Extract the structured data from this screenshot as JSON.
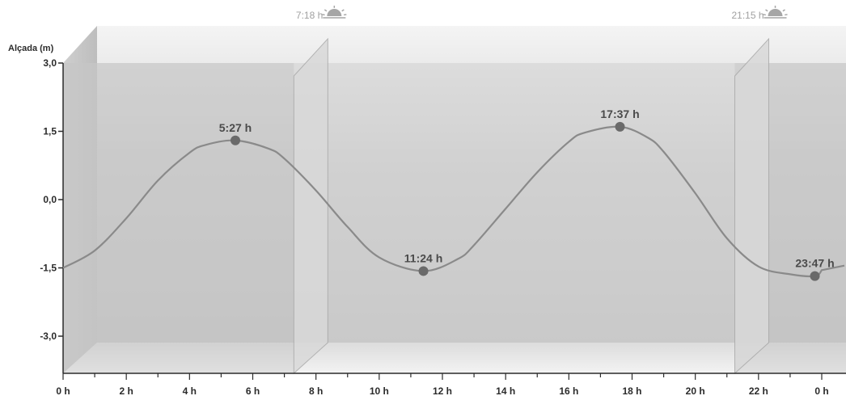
{
  "chart_data": {
    "type": "line",
    "ylabel": "Alçada  (m)",
    "xlabel": "",
    "xlim": [
      0,
      24
    ],
    "ylim": [
      -3.0,
      3.0
    ],
    "x_ticks": [
      0,
      2,
      4,
      6,
      8,
      10,
      12,
      14,
      16,
      18,
      20,
      22,
      24
    ],
    "x_tick_labels": [
      "0 h",
      "2 h",
      "4 h",
      "6 h",
      "8 h",
      "10 h",
      "12 h",
      "14 h",
      "16 h",
      "18 h",
      "20 h",
      "22 h",
      "0 h"
    ],
    "y_ticks": [
      3.0,
      1.5,
      0.0,
      -1.5,
      -3.0
    ],
    "y_tick_labels": [
      "3,0",
      "1,5",
      "0,0",
      "-1,5",
      "-3,0"
    ],
    "series": [
      {
        "x": [
          0.0,
          1.0,
          2.0,
          3.0,
          4.0,
          4.5,
          5.45,
          6.5,
          7.0,
          8.0,
          9.0,
          10.0,
          11.4,
          12.5,
          13.0,
          14.0,
          15.0,
          16.0,
          16.5,
          17.617,
          18.5,
          19.0,
          20.0,
          21.0,
          22.0,
          23.0,
          23.783,
          24.0
        ],
        "y": [
          -1.5,
          -1.12,
          -0.41,
          0.42,
          1.03,
          1.2,
          1.3,
          1.12,
          0.9,
          0.2,
          -0.6,
          -1.27,
          -1.57,
          -1.3,
          -1.0,
          -0.2,
          0.6,
          1.27,
          1.47,
          1.6,
          1.36,
          1.05,
          0.14,
          -0.85,
          -1.47,
          -1.64,
          -1.68,
          -1.55
        ]
      }
    ],
    "events": [
      {
        "label": "5:27 h",
        "x": 5.45,
        "y": 1.3
      },
      {
        "label": "11:24 h",
        "x": 11.4,
        "y": -1.57
      },
      {
        "label": "17:37 h",
        "x": 17.617,
        "y": 1.6
      },
      {
        "label": "23:47 h",
        "x": 23.783,
        "y": -1.68
      }
    ],
    "sun": [
      {
        "label": "7:18 h",
        "x": 7.3,
        "icon": "sunrise-icon"
      },
      {
        "label": "21:15 h",
        "x": 21.25,
        "icon": "sunset-icon"
      }
    ],
    "colors": {
      "curve": "#8a8a8a",
      "marker": "#6a6a6a",
      "panel_top": "#f2f2f2",
      "panel_bottom": "#c4c4c4",
      "floor": "#e9e9e9"
    }
  }
}
